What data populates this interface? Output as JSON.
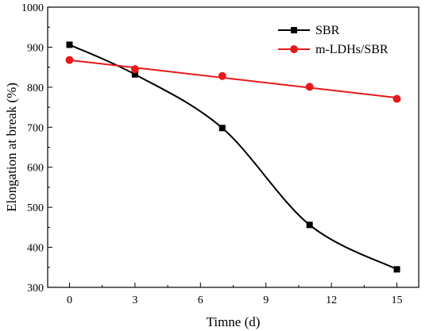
{
  "chart_data": {
    "type": "line",
    "xlabel": "Timne  (d)",
    "ylabel": "Elongation at break  (%)",
    "xlim": [
      -1,
      16
    ],
    "ylim": [
      300,
      1000
    ],
    "xticks": [
      0,
      3,
      6,
      9,
      12,
      15
    ],
    "yticks": [
      300,
      400,
      500,
      600,
      700,
      800,
      900,
      1000
    ],
    "grid": false,
    "legend_position": "top-right",
    "series": [
      {
        "name": "SBR",
        "color": "#000000",
        "marker": "square",
        "line": "smooth-fit",
        "x": [
          0,
          3,
          7,
          11,
          15
        ],
        "y": [
          906,
          832,
          698,
          456,
          345
        ]
      },
      {
        "name": "m-LDHs/SBR",
        "color": "#e8191a",
        "marker": "circle",
        "line": "linear-fit",
        "x": [
          0,
          3,
          7,
          11,
          15
        ],
        "y": [
          868,
          845,
          828,
          801,
          771
        ]
      }
    ]
  }
}
